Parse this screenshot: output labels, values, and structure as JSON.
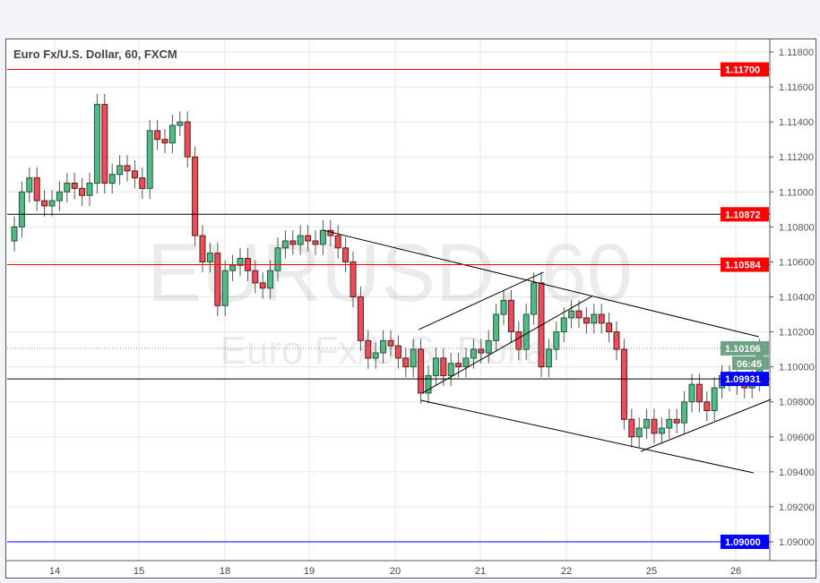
{
  "chart_data": {
    "type": "candlestick",
    "title": "Euro Fx/U.S. Dollar, 60, FXCM",
    "watermark": {
      "symbol": "EURUSD, 60",
      "name": "Euro Fx/U.S. Dollar"
    },
    "ylim": [
      1.0892,
      1.1186
    ],
    "yticks": [
      "1.11800",
      "1.11600",
      "1.11400",
      "1.11200",
      "1.11000",
      "1.10800",
      "1.10600",
      "1.10400",
      "1.10200",
      "1.10000",
      "1.09800",
      "1.09600",
      "1.09400",
      "1.09200",
      "1.09000"
    ],
    "xticks": [
      "14",
      "15",
      "18",
      "19",
      "20",
      "21",
      "22",
      "25",
      "26"
    ],
    "grid": true,
    "closes": [
      1.108,
      1.11,
      1.1108,
      1.1095,
      1.1092,
      1.1095,
      1.11,
      1.1105,
      1.1102,
      1.1098,
      1.1105,
      1.115,
      1.1105,
      1.111,
      1.1115,
      1.1112,
      1.1108,
      1.1102,
      1.1135,
      1.113,
      1.1128,
      1.1138,
      1.114,
      1.112,
      1.1075,
      1.106,
      1.1065,
      1.1035,
      1.1055,
      1.1058,
      1.1062,
      1.1055,
      1.1048,
      1.1045,
      1.1055,
      1.1068,
      1.1072,
      1.107,
      1.1075,
      1.1072,
      1.107,
      1.1078,
      1.1075,
      1.1068,
      1.106,
      1.104,
      1.1015,
      1.1005,
      1.1008,
      1.1015,
      1.1012,
      1.1005,
      1.1,
      1.101,
      1.0985,
      1.0995,
      1.1005,
      1.0995,
      1.1002,
      1.1,
      1.1005,
      1.101,
      1.1008,
      1.1015,
      1.103,
      1.1038,
      1.102,
      1.101,
      1.103,
      1.1048,
      1.1,
      1.101,
      1.102,
      1.1028,
      1.1032,
      1.1028,
      1.1025,
      1.103,
      1.1025,
      1.102,
      1.101,
      1.097,
      1.096,
      1.0965,
      1.097,
      1.0962,
      1.0965,
      1.097,
      1.0968,
      1.098,
      1.099,
      1.098,
      1.0975,
      1.0988,
      1.0995,
      1.0992,
      1.099,
      1.0988,
      1.0992,
      1.101
    ],
    "horizontal_lines": [
      {
        "price": 1.117,
        "label": "1.11700",
        "color": "#ff0000",
        "label_bg": "#ff0000"
      },
      {
        "price": 1.10872,
        "label": "1.10872",
        "color": "#000000",
        "label_bg": "#ff0000"
      },
      {
        "price": 1.10584,
        "label": "1.10584",
        "color": "#ff0000",
        "label_bg": "#ff0000"
      },
      {
        "price": 1.09931,
        "label": "1.09931",
        "color": "#000000",
        "label_bg": "#0000ff"
      },
      {
        "price": 1.09,
        "label": "1.09000",
        "color": "#0000ff",
        "label_bg": "#0000ff"
      }
    ],
    "current_price": {
      "price": 1.10106,
      "label": "1.10106",
      "countdown": "06:45",
      "color": "#6fa384"
    },
    "trendlines": [
      {
        "from": [
          41,
          1.10781
        ],
        "to": [
          98.9,
          1.10172
        ]
      },
      {
        "from": [
          54,
          1.09809
        ],
        "to": [
          98.2,
          1.09394
        ]
      },
      {
        "from": [
          53.7,
          1.10213
        ],
        "to": [
          70.3,
          1.10541
        ]
      },
      {
        "from": [
          54.2,
          1.0985
        ],
        "to": [
          76.7,
          1.10403
        ]
      },
      {
        "from": [
          83.2,
          1.09517
        ],
        "to": [
          100.5,
          1.09814
        ]
      }
    ],
    "colors": {
      "up": "#53b987",
      "down": "#eb4d5c",
      "up_border": "#225437",
      "down_border": "#5b1a13"
    }
  }
}
